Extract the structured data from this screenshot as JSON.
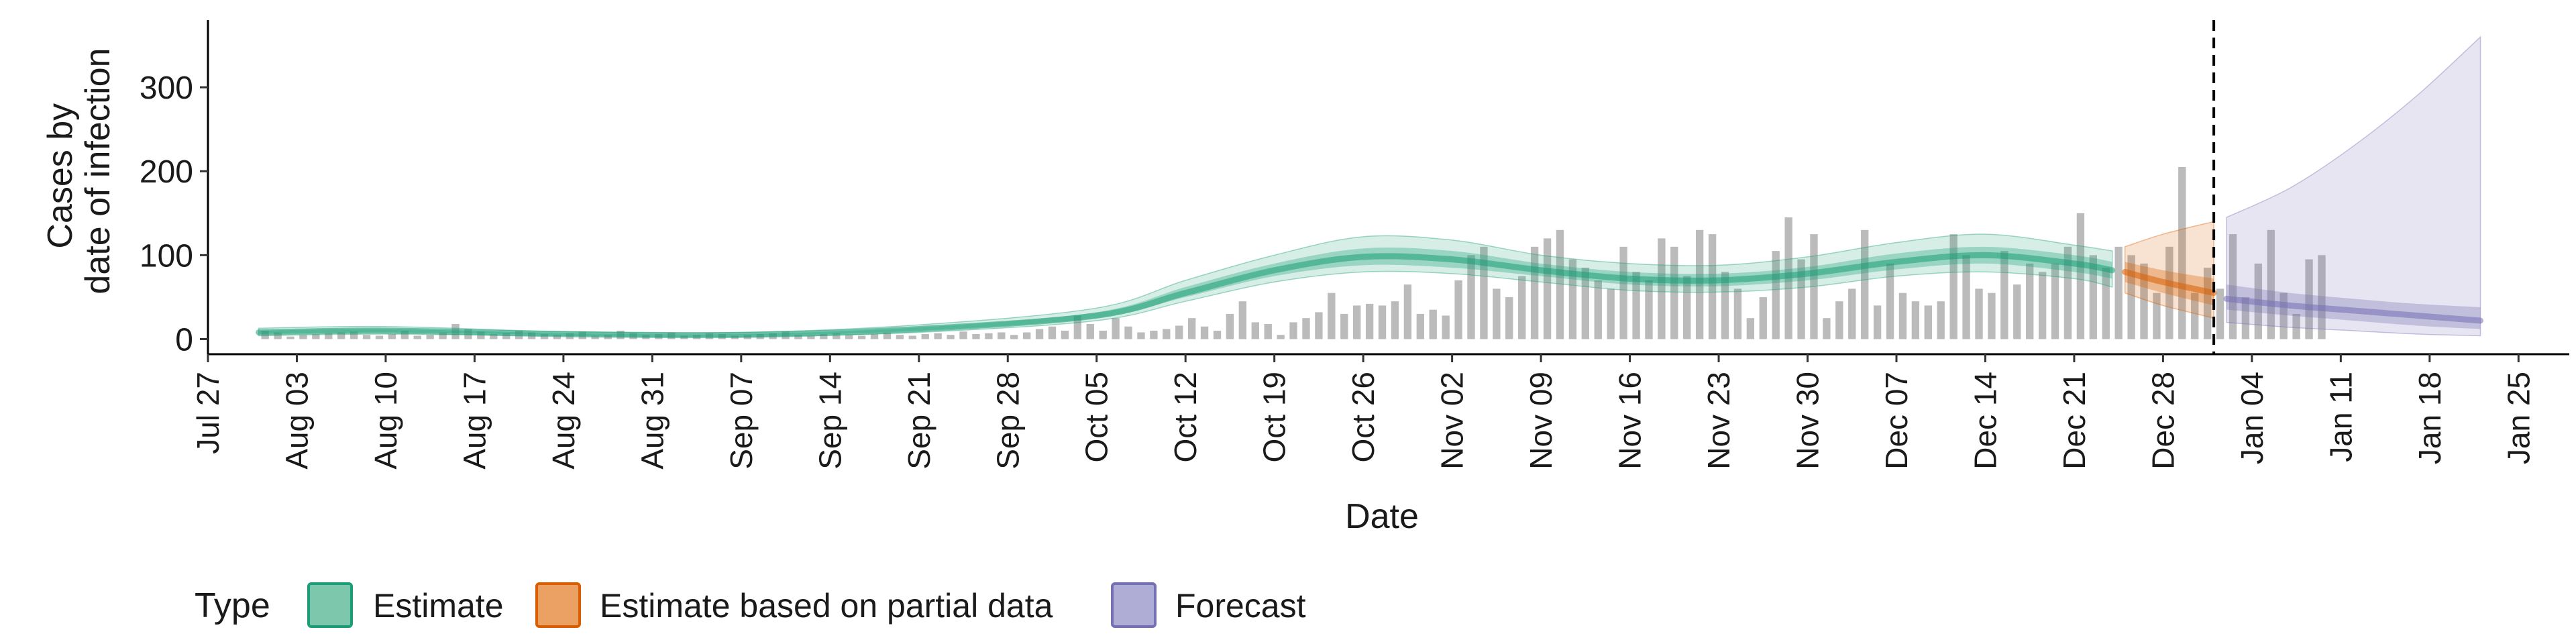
{
  "chart_data": {
    "type": "bar",
    "xlabel": "Date",
    "ylabel_lines": [
      "Cases by",
      "date of infection"
    ],
    "ylim": [
      -18,
      380
    ],
    "yticks": [
      0,
      100,
      200,
      300
    ],
    "x_start": "2020-07-27",
    "x_end": "2021-01-29",
    "xticks": [
      {
        "date": "2020-07-27",
        "label": "Jul 27"
      },
      {
        "date": "2020-08-03",
        "label": "Aug 03"
      },
      {
        "date": "2020-08-10",
        "label": "Aug 10"
      },
      {
        "date": "2020-08-17",
        "label": "Aug 17"
      },
      {
        "date": "2020-08-24",
        "label": "Aug 24"
      },
      {
        "date": "2020-08-31",
        "label": "Aug 31"
      },
      {
        "date": "2020-09-07",
        "label": "Sep 07"
      },
      {
        "date": "2020-09-14",
        "label": "Sep 14"
      },
      {
        "date": "2020-09-21",
        "label": "Sep 21"
      },
      {
        "date": "2020-09-28",
        "label": "Sep 28"
      },
      {
        "date": "2020-10-05",
        "label": "Oct 05"
      },
      {
        "date": "2020-10-12",
        "label": "Oct 12"
      },
      {
        "date": "2020-10-19",
        "label": "Oct 19"
      },
      {
        "date": "2020-10-26",
        "label": "Oct 26"
      },
      {
        "date": "2020-11-02",
        "label": "Nov 02"
      },
      {
        "date": "2020-11-09",
        "label": "Nov 09"
      },
      {
        "date": "2020-11-16",
        "label": "Nov 16"
      },
      {
        "date": "2020-11-23",
        "label": "Nov 23"
      },
      {
        "date": "2020-11-30",
        "label": "Nov 30"
      },
      {
        "date": "2020-12-07",
        "label": "Dec 07"
      },
      {
        "date": "2020-12-14",
        "label": "Dec 14"
      },
      {
        "date": "2020-12-21",
        "label": "Dec 21"
      },
      {
        "date": "2020-12-28",
        "label": "Dec 28"
      },
      {
        "date": "2021-01-04",
        "label": "Jan 04"
      },
      {
        "date": "2021-01-11",
        "label": "Jan 11"
      },
      {
        "date": "2021-01-18",
        "label": "Jan 18"
      },
      {
        "date": "2021-01-25",
        "label": "Jan 25"
      }
    ],
    "observed": {
      "start_date": "2020-07-31",
      "values": [
        10,
        8,
        3,
        5,
        6,
        7,
        8,
        9,
        5,
        4,
        6,
        10,
        4,
        5,
        8,
        18,
        12,
        9,
        6,
        7,
        10,
        8,
        6,
        5,
        7,
        9,
        4,
        5,
        10,
        7,
        5,
        6,
        8,
        4,
        5,
        7,
        6,
        4,
        5,
        6,
        7,
        9,
        5,
        4,
        6,
        7,
        5,
        4,
        6,
        8,
        5,
        4,
        6,
        7,
        5,
        9,
        6,
        7,
        8,
        5,
        8,
        12,
        15,
        10,
        28,
        18,
        10,
        25,
        15,
        8,
        10,
        12,
        16,
        25,
        15,
        10,
        30,
        45,
        20,
        18,
        5,
        20,
        25,
        32,
        55,
        30,
        40,
        42,
        40,
        45,
        65,
        30,
        35,
        28,
        70,
        100,
        110,
        60,
        50,
        75,
        110,
        120,
        130,
        95,
        85,
        70,
        60,
        110,
        80,
        70,
        120,
        110,
        75,
        130,
        125,
        80,
        60,
        25,
        50,
        105,
        145,
        95,
        125,
        25,
        45,
        60,
        130,
        40,
        90,
        55,
        45,
        40,
        45,
        125,
        100,
        60,
        55,
        105,
        65,
        90,
        80,
        90,
        110,
        150,
        100,
        85,
        110,
        100,
        90,
        55,
        110,
        205,
        55,
        85,
        60
      ],
      "partial_values": [
        125,
        50,
        90,
        130,
        55,
        30,
        95,
        100
      ]
    },
    "legend_title": "Type",
    "legend_placement": "bottom-left",
    "series": [
      {
        "name": "Estimate",
        "color": "#1b9e77",
        "x": [
          "2020-07-31",
          "2020-08-10",
          "2020-08-24",
          "2020-09-07",
          "2020-09-21",
          "2020-10-05",
          "2020-10-12",
          "2020-10-19",
          "2020-10-26",
          "2020-11-02",
          "2020-11-09",
          "2020-11-16",
          "2020-11-23",
          "2020-11-30",
          "2020-12-07",
          "2020-12-14",
          "2020-12-21",
          "2020-12-24"
        ],
        "median": [
          8,
          10,
          6,
          5,
          12,
          28,
          55,
          82,
          98,
          95,
          82,
          72,
          70,
          78,
          92,
          100,
          90,
          82
        ],
        "inner_lower": [
          6,
          8,
          5,
          4,
          10,
          25,
          50,
          75,
          88,
          85,
          75,
          65,
          63,
          70,
          83,
          90,
          80,
          72
        ],
        "inner_upper": [
          10,
          12,
          7,
          6,
          14,
          32,
          62,
          90,
          108,
          105,
          90,
          80,
          78,
          86,
          102,
          110,
          100,
          92
        ],
        "outer_lower": [
          4,
          6,
          4,
          3,
          8,
          22,
          45,
          68,
          80,
          78,
          68,
          58,
          56,
          62,
          75,
          80,
          72,
          62
        ],
        "outer_upper": [
          13,
          15,
          9,
          8,
          17,
          37,
          70,
          100,
          122,
          118,
          100,
          90,
          88,
          98,
          115,
          125,
          112,
          105
        ]
      },
      {
        "name": "Estimate based on partial data",
        "color": "#d95f02",
        "x": [
          "2020-12-25",
          "2020-12-28",
          "2021-01-01"
        ],
        "median": [
          80,
          68,
          55
        ],
        "inner_lower": [
          68,
          55,
          40
        ],
        "inner_upper": [
          92,
          82,
          72
        ],
        "outer_lower": [
          55,
          40,
          25
        ],
        "outer_upper": [
          110,
          125,
          140
        ]
      },
      {
        "name": "Forecast",
        "color": "#7570b3",
        "x": [
          "2021-01-02",
          "2021-01-07",
          "2021-01-12",
          "2021-01-17",
          "2021-01-22"
        ],
        "median": [
          48,
          40,
          34,
          28,
          22
        ],
        "inner_lower": [
          35,
          28,
          22,
          16,
          12
        ],
        "inner_upper": [
          65,
          55,
          48,
          42,
          38
        ],
        "outer_lower": [
          20,
          14,
          10,
          6,
          4
        ],
        "outer_upper": [
          145,
          180,
          230,
          290,
          360
        ]
      }
    ],
    "forecast_line_date": "2021-01-01"
  }
}
